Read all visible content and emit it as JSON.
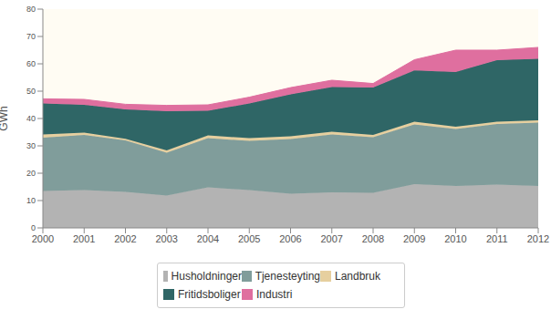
{
  "chart_data": {
    "type": "area",
    "stacked": true,
    "y_label": "GWh",
    "x": [
      2000,
      2001,
      2002,
      2003,
      2004,
      2005,
      2006,
      2007,
      2008,
      2009,
      2010,
      2011,
      2012
    ],
    "xlim": [
      2000,
      2012
    ],
    "xticks": [
      2000,
      2001,
      2002,
      2003,
      2004,
      2005,
      2006,
      2007,
      2008,
      2009,
      2010,
      2011,
      2012
    ],
    "ylim": [
      0,
      80
    ],
    "yticks": [
      0,
      10,
      20,
      30,
      40,
      50,
      60,
      70,
      80
    ],
    "grid": false,
    "legend": "bottom",
    "series": [
      {
        "name": "Husholdninger",
        "color": "#b3b3b3",
        "values": [
          13.5,
          13.8,
          13.2,
          11.8,
          14.8,
          13.8,
          12.5,
          13,
          12.8,
          16,
          15.3,
          15.8,
          15.3
        ]
      },
      {
        "name": "Tjenesteyting",
        "color": "#809d9b",
        "values": [
          19.5,
          20.2,
          18.8,
          15.7,
          18,
          18,
          20,
          21.2,
          20.4,
          21.8,
          20.9,
          22.2,
          23.2
        ]
      },
      {
        "name": "Landbruk",
        "color": "#e6cf9f",
        "values": [
          1.2,
          0.8,
          0.6,
          0.8,
          1,
          1,
          1,
          1,
          0.8,
          1,
          0.8,
          0.8,
          0.8
        ]
      },
      {
        "name": "Fritidsboliger",
        "color": "#2f6666",
        "values": [
          11.3,
          10.2,
          10.7,
          14.4,
          9,
          12.7,
          15.3,
          16.3,
          17.3,
          18.8,
          20,
          22.5,
          22.5
        ]
      },
      {
        "name": "Industri",
        "color": "#df6f9f",
        "values": [
          1.7,
          2,
          1.9,
          2.1,
          2.2,
          2.3,
          2.5,
          2.5,
          1.5,
          3.9,
          8,
          3.7,
          4.2
        ]
      }
    ]
  }
}
